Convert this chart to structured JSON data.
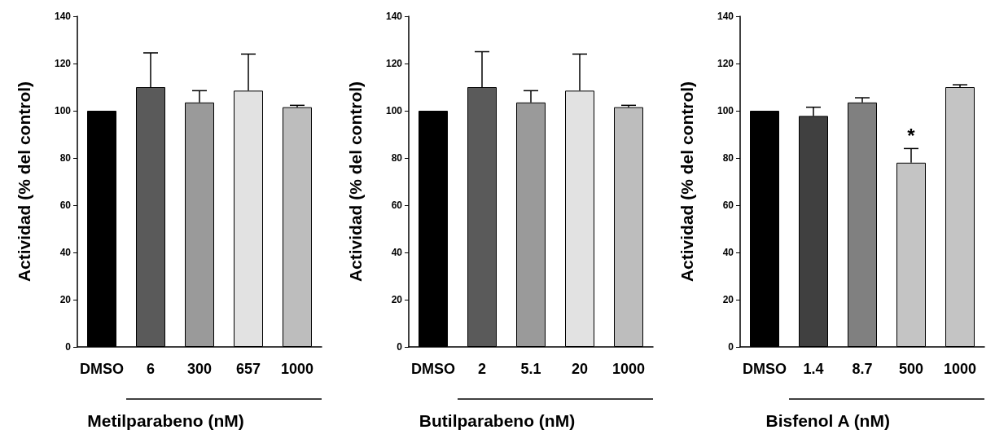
{
  "chart_data": [
    {
      "type": "bar",
      "ylabel": "Actividad (% del control)",
      "xlabel": "Metilparabeno (nM)",
      "categories": [
        "DMSO",
        "6",
        "300",
        "657",
        "1000"
      ],
      "values": [
        100,
        110,
        103.5,
        108.5,
        101.5
      ],
      "colors": [
        "#000000",
        "#5a5a5a",
        "#9a9a9a",
        "#e2e2e2",
        "#bdbdbd"
      ],
      "errors": [
        null,
        [
          110,
          124.5
        ],
        [
          103.5,
          108.5
        ],
        [
          108.5,
          124
        ],
        [
          101.5,
          102.3
        ]
      ],
      "ylim": [
        0,
        140
      ],
      "yticks": [
        0,
        20,
        40,
        60,
        80,
        100,
        120,
        140
      ]
    },
    {
      "type": "bar",
      "ylabel": "Actividad (% del control)",
      "xlabel": "Butilparabeno (nM)",
      "categories": [
        "DMSO",
        "2",
        "5.1",
        "20",
        "1000"
      ],
      "values": [
        100,
        110,
        103.5,
        108.5,
        101.5
      ],
      "colors": [
        "#000000",
        "#5a5a5a",
        "#9a9a9a",
        "#e2e2e2",
        "#bdbdbd"
      ],
      "errors": [
        null,
        [
          110,
          125
        ],
        [
          103.5,
          108.5
        ],
        [
          108.5,
          124
        ],
        [
          101.5,
          102.3
        ]
      ],
      "ylim": [
        0,
        140
      ],
      "yticks": [
        0,
        20,
        40,
        60,
        80,
        100,
        120,
        140
      ]
    },
    {
      "type": "bar",
      "ylabel": "Actividad (% del control)",
      "xlabel": "Bisfenol A (nM)",
      "categories": [
        "DMSO",
        "1.4",
        "8.7",
        "500",
        "1000"
      ],
      "values": [
        100,
        97.8,
        103.5,
        78,
        110
      ],
      "colors": [
        "#000000",
        "#404040",
        "#808080",
        "#c4c4c4",
        "#c4c4c4"
      ],
      "errors": [
        null,
        [
          97.8,
          101.5
        ],
        [
          103.5,
          105.5
        ],
        [
          78,
          84
        ],
        [
          110,
          111
        ]
      ],
      "ylim": [
        0,
        140
      ],
      "yticks": [
        0,
        20,
        40,
        60,
        80,
        100,
        120,
        140
      ],
      "annotations": [
        {
          "text": "*",
          "x": "500",
          "y": 84
        }
      ]
    }
  ]
}
